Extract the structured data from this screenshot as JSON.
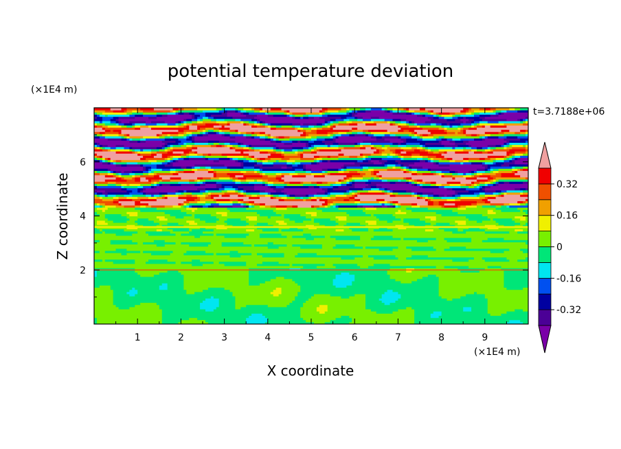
{
  "chart_data": {
    "type": "heatmap",
    "title": "potential temperature deviation",
    "xlabel": "X coordinate",
    "ylabel": "Z coordinate",
    "x_unit": "(×1E4 m)",
    "y_unit": "(×1E4 m)",
    "time_label": "t=3.7188e+06",
    "xlim": [
      0,
      10
    ],
    "ylim": [
      0,
      8
    ],
    "x_ticks": [
      "1",
      "2",
      "3",
      "4",
      "5",
      "6",
      "7",
      "8",
      "9"
    ],
    "y_ticks": [
      "2",
      "4",
      "6"
    ],
    "colorbar": {
      "levels": [
        -0.48,
        -0.4,
        -0.32,
        -0.24,
        -0.16,
        -0.08,
        0,
        0.08,
        0.16,
        0.24,
        0.32,
        0.4,
        0.48
      ],
      "colors": [
        "#7a00a8",
        "#4b0096",
        "#0000a0",
        "#0050f0",
        "#00e6f0",
        "#00e678",
        "#78f000",
        "#f0f000",
        "#f0a000",
        "#f05000",
        "#f00000",
        "#f0a0a0"
      ],
      "tick_labels": [
        "0.32",
        "0.16",
        "0",
        "-0.16",
        "-0.32"
      ],
      "tick_values": [
        0.32,
        0.16,
        0,
        -0.16,
        -0.32
      ]
    }
  }
}
